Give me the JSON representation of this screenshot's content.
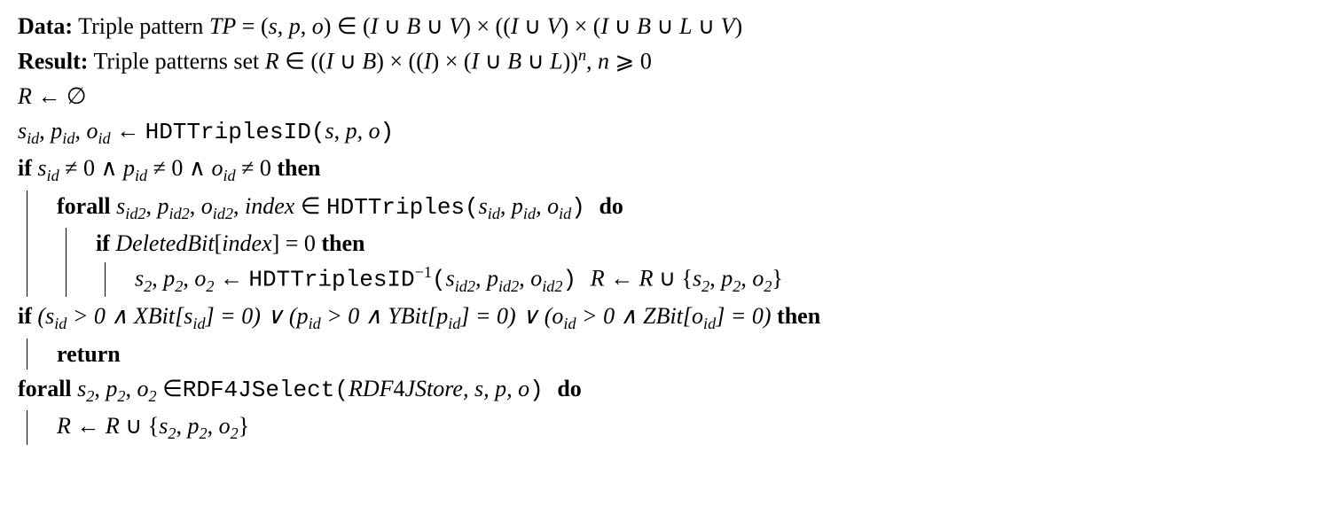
{
  "line1": {
    "label": "Data:",
    "text1": " Triple pattern ",
    "tp": "TP",
    "eq": " = (",
    "s": "s",
    "c1": ", ",
    "p": "p",
    "c2": ", ",
    "o": "o",
    "in": ") ∈ (",
    "I": "I",
    "cup": " ∪ ",
    "B": "B",
    "V": "V",
    "times": ") × ((",
    "part2": ") × (",
    "L": "L",
    "close": ")"
  },
  "line2": {
    "label": "Result:",
    "text1": " Triple patterns set ",
    "R": "R",
    "in": " ∈ ((",
    "I": "I",
    "cup": " ∪ ",
    "B": "B",
    "t1": ") × ((",
    "t2": ") × (",
    "L": "L",
    "close": "))",
    "n": "n",
    "nend": ", ",
    "nvar": "n",
    "geq": " ⩾ 0"
  },
  "line3": {
    "R": "R",
    "arrow": " ← ∅"
  },
  "line4": {
    "sid": "s",
    "id": "id",
    "c": ", ",
    "pid": "p",
    "oid": "o",
    "arrow": " ← ",
    "fn": "HDTTriplesID(",
    "s": "s",
    "p": "p",
    "o": "o",
    "close": ")"
  },
  "line5": {
    "if": "if ",
    "sid": "s",
    "id": "id",
    "neq": " ≠ 0 ∧ ",
    "pid": "p",
    "oid": "o",
    "neqend": " ≠ 0 ",
    "then": "then"
  },
  "line6": {
    "forall": "forall ",
    "sid": "s",
    "id2": "id2",
    "c": ", ",
    "pid": "p",
    "oid": "o",
    "index": "index",
    "in": " ∈ ",
    "fn": "HDTTriples(",
    "sidp": "s",
    "id": "id",
    "pidp": "p",
    "oidp": "o",
    "close": ") ",
    "do": "do"
  },
  "line7": {
    "if": "if ",
    "db": "DeletedBit",
    "lb": "[",
    "index": "index",
    "rb": "] = 0 ",
    "then": "then"
  },
  "line8": {
    "s2": "s",
    "sub2": "2",
    "c": ", ",
    "p2": "p",
    "o2": "o",
    "arrow": " ← ",
    "fn": "HDTTriplesID",
    "inv": "−1",
    "open": "(",
    "sid2": "s",
    "id2": "id2",
    "pid2": "p",
    "oid2": "o",
    "close": ")  ",
    "R": "R",
    "arrow2": " ← ",
    "R2": "R",
    "cup": " ∪ {",
    "cbrace": "}"
  },
  "line9": {
    "if": "if ",
    "open": "(",
    "sid": "s",
    "id": "id",
    "gt": " > 0 ∧ ",
    "xbit": "XBit",
    "lb": "[",
    "rb": "] = 0) ∨ (",
    "pid": "p",
    "ybit": "YBit",
    "rb2": "] = 0) ∨ (",
    "oid": "o",
    "zbit": "ZBit",
    "rb3": "] = 0) ",
    "then": "then"
  },
  "line10": {
    "return": "return"
  },
  "line11": {
    "forall": "forall ",
    "s2": "s",
    "sub2": "2",
    "c": ", ",
    "p2": "p",
    "o2": "o",
    "in": " ∈",
    "fn": "RDF4JSelect(",
    "store": "RDF",
    "four": "4",
    "jstore": "JStore",
    "s": "s",
    "p": "p",
    "o": "o",
    "close": ") ",
    "do": "do"
  },
  "line12": {
    "R": "R",
    "arrow": " ← ",
    "R2": "R",
    "cup": " ∪ {",
    "s2": "s",
    "sub2": "2",
    "c": ", ",
    "p2": "p",
    "o2": "o",
    "cbrace": "}"
  }
}
